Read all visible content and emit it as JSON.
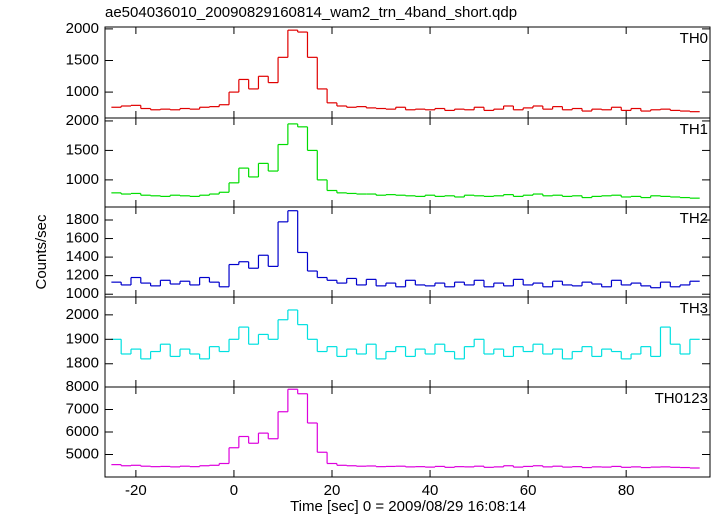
{
  "chart_data": [
    {
      "type": "step",
      "title": "ae504036010_20090829160814_wam2_trn_4band_short.qdp",
      "label": "TH0",
      "color": "#e00000",
      "x": [
        -24,
        -22,
        -20,
        -18,
        -16,
        -14,
        -12,
        -10,
        -8,
        -6,
        -4,
        -2,
        0,
        2,
        4,
        6,
        8,
        10,
        12,
        14,
        16,
        18,
        20,
        22,
        24,
        26,
        28,
        30,
        32,
        34,
        36,
        38,
        40,
        42,
        44,
        46,
        48,
        50,
        52,
        54,
        56,
        58,
        60,
        62,
        64,
        66,
        68,
        70,
        72,
        74,
        76,
        78,
        80,
        82,
        84,
        86,
        88,
        90,
        92,
        94
      ],
      "values": [
        760,
        780,
        790,
        740,
        720,
        730,
        720,
        740,
        730,
        760,
        770,
        800,
        1000,
        1200,
        1050,
        1250,
        1150,
        1550,
        1980,
        1950,
        1550,
        1050,
        830,
        780,
        760,
        770,
        750,
        740,
        730,
        760,
        720,
        730,
        720,
        740,
        710,
        730,
        720,
        760,
        710,
        730,
        780,
        720,
        750,
        780,
        730,
        770,
        720,
        740,
        700,
        730,
        720,
        760,
        710,
        740,
        700,
        720,
        730,
        710,
        700,
        690
      ],
      "xlim": [
        -26.3,
        97.1
      ],
      "xticks": [
        -20,
        0,
        20,
        40,
        60,
        80
      ],
      "ylim": [
        590,
        2030
      ],
      "yticks": [
        1000,
        1500,
        2000
      ]
    },
    {
      "type": "step",
      "label": "TH1",
      "color": "#00dd00",
      "ylabel": "Counts/sec",
      "x": [
        -24,
        -22,
        -20,
        -18,
        -16,
        -14,
        -12,
        -10,
        -8,
        -6,
        -4,
        -2,
        0,
        2,
        4,
        6,
        8,
        10,
        12,
        14,
        16,
        18,
        20,
        22,
        24,
        26,
        28,
        30,
        32,
        34,
        36,
        38,
        40,
        42,
        44,
        46,
        48,
        50,
        52,
        54,
        56,
        58,
        60,
        62,
        64,
        66,
        68,
        70,
        72,
        74,
        76,
        78,
        80,
        82,
        84,
        86,
        88,
        90,
        92,
        94
      ],
      "values": [
        780,
        760,
        770,
        740,
        730,
        720,
        740,
        730,
        720,
        740,
        760,
        790,
        950,
        1200,
        1050,
        1280,
        1150,
        1600,
        1950,
        1900,
        1500,
        1000,
        820,
        780,
        770,
        760,
        760,
        740,
        750,
        740,
        730,
        720,
        740,
        720,
        730,
        710,
        740,
        730,
        720,
        730,
        750,
        720,
        740,
        760,
        730,
        740,
        720,
        730,
        700,
        720,
        730,
        740,
        710,
        720,
        700,
        730,
        720,
        710,
        700,
        690
      ],
      "xlim": [
        -26.3,
        97.1
      ],
      "xticks": [
        -20,
        0,
        20,
        40,
        60,
        80
      ],
      "ylim": [
        540,
        2050
      ],
      "yticks": [
        1000,
        1500,
        2000
      ]
    },
    {
      "type": "step",
      "label": "TH2",
      "color": "#0000cc",
      "x": [
        -24,
        -22,
        -20,
        -18,
        -16,
        -14,
        -12,
        -10,
        -8,
        -6,
        -4,
        -2,
        0,
        2,
        4,
        6,
        8,
        10,
        12,
        14,
        16,
        18,
        20,
        22,
        24,
        26,
        28,
        30,
        32,
        34,
        36,
        38,
        40,
        42,
        44,
        46,
        48,
        50,
        52,
        54,
        56,
        58,
        60,
        62,
        64,
        66,
        68,
        70,
        72,
        74,
        76,
        78,
        80,
        82,
        84,
        86,
        88,
        90,
        92,
        94
      ],
      "values": [
        1130,
        1100,
        1180,
        1120,
        1090,
        1150,
        1110,
        1140,
        1100,
        1180,
        1130,
        1080,
        1320,
        1350,
        1280,
        1420,
        1300,
        1780,
        1900,
        1450,
        1250,
        1180,
        1150,
        1120,
        1170,
        1100,
        1160,
        1090,
        1120,
        1080,
        1150,
        1100,
        1090,
        1120,
        1080,
        1130,
        1100,
        1150,
        1080,
        1120,
        1090,
        1160,
        1100,
        1120,
        1080,
        1140,
        1100,
        1090,
        1130,
        1110,
        1080,
        1150,
        1100,
        1120,
        1090,
        1070,
        1130,
        1080,
        1100,
        1140
      ],
      "xlim": [
        -26.3,
        97.1
      ],
      "xticks": [
        -20,
        0,
        20,
        40,
        60,
        80
      ],
      "ylim": [
        970,
        1940
      ],
      "yticks": [
        1000,
        1200,
        1400,
        1600,
        1800
      ]
    },
    {
      "type": "step",
      "label": "TH3",
      "color": "#00e0e0",
      "x": [
        -24,
        -22,
        -20,
        -18,
        -16,
        -14,
        -12,
        -10,
        -8,
        -6,
        -4,
        -2,
        0,
        2,
        4,
        6,
        8,
        10,
        12,
        14,
        16,
        18,
        20,
        22,
        24,
        26,
        28,
        30,
        32,
        34,
        36,
        38,
        40,
        42,
        44,
        46,
        48,
        50,
        52,
        54,
        56,
        58,
        60,
        62,
        64,
        66,
        68,
        70,
        72,
        74,
        76,
        78,
        80,
        82,
        84,
        86,
        88,
        90,
        92,
        94
      ],
      "values": [
        1900,
        1840,
        1860,
        1820,
        1850,
        1880,
        1830,
        1860,
        1840,
        1820,
        1870,
        1850,
        1900,
        1950,
        1880,
        1920,
        1900,
        1980,
        2020,
        1960,
        1900,
        1850,
        1870,
        1830,
        1860,
        1840,
        1880,
        1820,
        1850,
        1870,
        1830,
        1860,
        1840,
        1880,
        1850,
        1820,
        1870,
        1900,
        1840,
        1860,
        1830,
        1870,
        1850,
        1880,
        1840,
        1860,
        1820,
        1850,
        1870,
        1830,
        1860,
        1850,
        1820,
        1840,
        1870,
        1830,
        1950,
        1880,
        1840,
        1900
      ],
      "xlim": [
        -26.3,
        97.1
      ],
      "xticks": [
        -20,
        0,
        20,
        40,
        60,
        80
      ],
      "ylim": [
        1705,
        2073
      ],
      "yticks": [
        1800,
        1900,
        2000
      ]
    },
    {
      "type": "step",
      "label": "TH0123",
      "color": "#dd00dd",
      "xlabel": "Time [sec] 0 = 2009/08/29 16:08:14",
      "x": [
        -24,
        -22,
        -20,
        -18,
        -16,
        -14,
        -12,
        -10,
        -8,
        -6,
        -4,
        -2,
        0,
        2,
        4,
        6,
        8,
        10,
        12,
        14,
        16,
        18,
        20,
        22,
        24,
        26,
        28,
        30,
        32,
        34,
        36,
        38,
        40,
        42,
        44,
        46,
        48,
        50,
        52,
        54,
        56,
        58,
        60,
        62,
        64,
        66,
        68,
        70,
        72,
        74,
        76,
        78,
        80,
        82,
        84,
        86,
        88,
        90,
        92,
        94
      ],
      "values": [
        4550,
        4500,
        4520,
        4480,
        4460,
        4470,
        4450,
        4480,
        4460,
        4500,
        4520,
        4600,
        5300,
        5800,
        5500,
        5950,
        5700,
        6900,
        7900,
        7700,
        6400,
        5100,
        4600,
        4520,
        4500,
        4480,
        4490,
        4460,
        4470,
        4480,
        4450,
        4460,
        4440,
        4470,
        4430,
        4460,
        4450,
        4480,
        4430,
        4450,
        4500,
        4440,
        4470,
        4500,
        4450,
        4480,
        4440,
        4460,
        4420,
        4450,
        4440,
        4470,
        4430,
        4450,
        4420,
        4440,
        4450,
        4430,
        4420,
        4400
      ],
      "xlim": [
        -26.3,
        97.1
      ],
      "xticks": [
        -20,
        0,
        20,
        40,
        60,
        80
      ],
      "ylim": [
        4000,
        8000
      ],
      "yticks": [
        5000,
        6000,
        7000,
        8000
      ]
    }
  ]
}
